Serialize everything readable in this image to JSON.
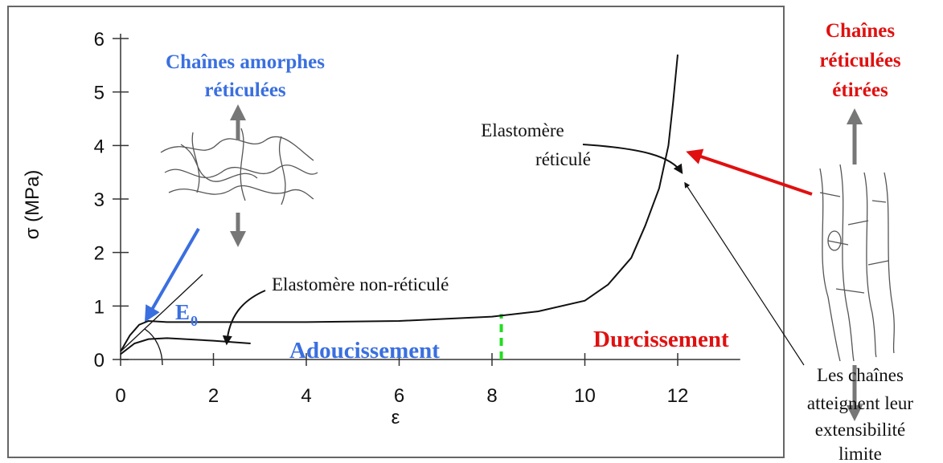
{
  "chart_data": {
    "type": "line",
    "xlabel": "ε",
    "ylabel": "σ (MPa)",
    "xlim": [
      0,
      13
    ],
    "ylim": [
      0,
      6
    ],
    "xticks": [
      0,
      2,
      4,
      6,
      8,
      10,
      12
    ],
    "yticks": [
      0,
      1,
      2,
      3,
      4,
      5,
      6
    ],
    "series": [
      {
        "color": "#111111",
        "x": [
          0,
          0.2,
          0.4,
          0.6,
          1,
          2,
          4,
          6,
          8,
          9,
          10,
          10.5,
          11,
          11.3,
          11.6,
          11.8,
          11.9,
          12
        ],
        "values": [
          0.15,
          0.45,
          0.65,
          0.72,
          0.7,
          0.7,
          0.7,
          0.72,
          0.8,
          0.9,
          1.1,
          1.4,
          1.9,
          2.5,
          3.2,
          4.0,
          4.8,
          5.7
        ]
      },
      {
        "color": "#111111",
        "x": [
          0,
          0.3,
          0.6,
          1,
          2,
          2.8
        ],
        "values": [
          0.1,
          0.3,
          0.38,
          0.4,
          0.35,
          0.3
        ]
      }
    ],
    "transition_x": 8.2,
    "transition_color": "#22dd22",
    "annotations": {
      "amorphous": [
        "Chaînes amorphes",
        "réticulées"
      ],
      "stretched": [
        "Chaînes",
        "réticulées",
        "étirées"
      ],
      "crosslinked": [
        "Elastomère",
        "réticulé"
      ],
      "uncrosslinked": "Elastomère non-réticulé",
      "modulus": "E",
      "modulus_sub": "0",
      "softening": "Adoucissement",
      "hardening": "Durcissement",
      "limit": [
        "Les chaînes",
        "atteignent leur",
        "extensibilité",
        "limite"
      ]
    }
  }
}
